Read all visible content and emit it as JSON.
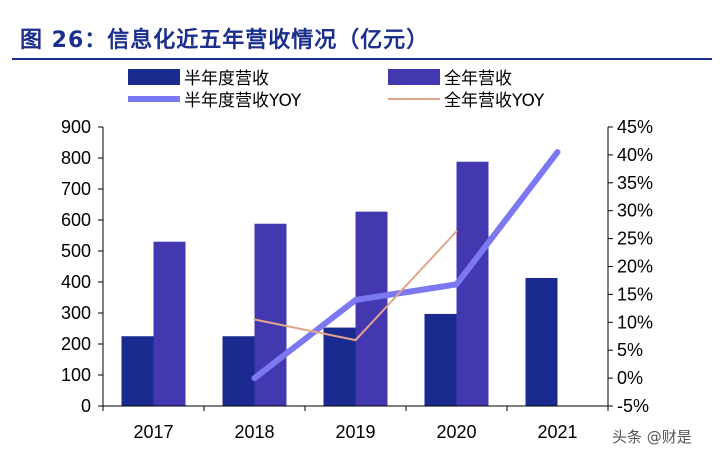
{
  "figure": {
    "title": "图 26：信息化近五年营收情况（亿元）",
    "watermark": "头条 @财是"
  },
  "chart_data": {
    "type": "bar",
    "categories": [
      "2017",
      "2018",
      "2019",
      "2020",
      "2021"
    ],
    "ylim": [
      0,
      900
    ],
    "y_ticks": [
      0,
      100,
      200,
      300,
      400,
      500,
      600,
      700,
      800,
      900
    ],
    "y2lim": [
      -5,
      45
    ],
    "y2_ticks": [
      "-5%",
      "0%",
      "5%",
      "10%",
      "15%",
      "20%",
      "25%",
      "30%",
      "35%",
      "40%",
      "45%"
    ],
    "grid": false,
    "legend_position": "top",
    "series": [
      {
        "name": "半年度营收",
        "type": "bar",
        "axis": "left",
        "color": "#1a2a8f",
        "values": [
          225,
          225,
          253,
          297,
          413
        ]
      },
      {
        "name": "全年营收",
        "type": "bar",
        "axis": "left",
        "color": "#4438b0",
        "values": [
          530,
          588,
          627,
          788,
          null
        ]
      },
      {
        "name": "半年度营收YOY",
        "type": "line",
        "axis": "right",
        "color": "#7b78f2",
        "values": [
          null,
          0.0,
          14.0,
          16.8,
          40.5
        ]
      },
      {
        "name": "全年营收YOY",
        "type": "line",
        "axis": "right",
        "color": "#e3a58c",
        "values": [
          null,
          10.5,
          6.8,
          26.3,
          null
        ]
      }
    ]
  }
}
